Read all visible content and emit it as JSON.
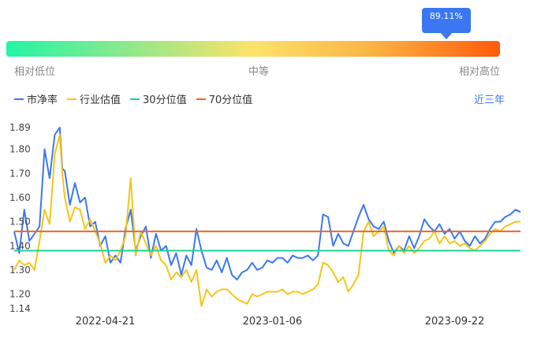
{
  "gauge": {
    "percentile_label": "89.11%",
    "percentile": 0.8911,
    "low_label": "相对低位",
    "mid_label": "中等",
    "high_label": "相对高位",
    "colors": [
      "#22f5a8",
      "#fde36a",
      "#ff5a0a"
    ]
  },
  "legend": {
    "items": [
      {
        "label": "市净率",
        "color": "#3a78f2"
      },
      {
        "label": "行业估值",
        "color": "#f5c518"
      },
      {
        "label": "30分位值",
        "color": "#1fd28f"
      },
      {
        "label": "70分位值",
        "color": "#f5621e"
      }
    ]
  },
  "period_label": "近三年",
  "chart_data": {
    "type": "line",
    "ylim": [
      1.14,
      1.89
    ],
    "ytick_labels": [
      "1.89",
      "1.80",
      "1.70",
      "1.60",
      "1.50",
      "1.40",
      "1.30",
      "1.20",
      "1.14"
    ],
    "yticks": [
      1.89,
      1.8,
      1.7,
      1.6,
      1.5,
      1.4,
      1.3,
      1.2,
      1.14
    ],
    "x_range": [
      0,
      100
    ],
    "xtick_labels": [
      "2022-04-21",
      "2023-01-06",
      "2023-09-22"
    ],
    "xticks": [
      18,
      51,
      87
    ],
    "series": [
      {
        "name": "市净率",
        "color": "#3a78f2",
        "x": [
          0,
          1,
          2,
          3,
          4,
          5,
          6,
          7,
          8,
          9,
          9.5,
          10,
          11,
          12,
          13,
          14,
          15,
          16,
          17,
          18,
          19,
          20,
          21,
          22,
          23,
          24,
          25,
          26,
          27,
          28,
          29,
          30,
          31,
          32,
          33,
          34,
          35,
          36,
          37,
          38,
          39,
          40,
          41,
          42,
          43,
          44,
          45,
          46,
          47,
          48,
          49,
          50,
          51,
          52,
          53,
          54,
          55,
          56,
          57,
          58,
          59,
          60,
          61,
          62,
          63,
          64,
          65,
          66,
          67,
          68,
          69,
          70,
          71,
          72,
          73,
          74,
          75,
          76,
          77,
          78,
          79,
          80,
          81,
          82,
          83,
          84,
          85,
          86,
          87,
          88,
          89,
          90,
          91,
          92,
          93,
          94,
          95,
          96,
          97,
          98,
          99,
          100
        ],
        "values": [
          1.46,
          1.37,
          1.55,
          1.42,
          1.45,
          1.48,
          1.8,
          1.68,
          1.86,
          1.89,
          1.72,
          1.71,
          1.57,
          1.66,
          1.58,
          1.6,
          1.48,
          1.5,
          1.4,
          1.44,
          1.33,
          1.36,
          1.33,
          1.47,
          1.55,
          1.38,
          1.44,
          1.48,
          1.35,
          1.45,
          1.38,
          1.4,
          1.32,
          1.37,
          1.28,
          1.36,
          1.32,
          1.47,
          1.38,
          1.31,
          1.3,
          1.34,
          1.29,
          1.35,
          1.28,
          1.26,
          1.29,
          1.3,
          1.33,
          1.3,
          1.31,
          1.34,
          1.33,
          1.35,
          1.35,
          1.33,
          1.36,
          1.35,
          1.35,
          1.36,
          1.34,
          1.36,
          1.53,
          1.52,
          1.4,
          1.45,
          1.41,
          1.4,
          1.46,
          1.52,
          1.57,
          1.51,
          1.48,
          1.47,
          1.5,
          1.42,
          1.37,
          1.4,
          1.38,
          1.44,
          1.39,
          1.44,
          1.51,
          1.48,
          1.46,
          1.49,
          1.45,
          1.47,
          1.43,
          1.46,
          1.42,
          1.4,
          1.44,
          1.41,
          1.43,
          1.47,
          1.5,
          1.5,
          1.52,
          1.53,
          1.55,
          1.54
        ]
      },
      {
        "name": "行业估值",
        "color": "#f5c518",
        "x": [
          0,
          1,
          2,
          3,
          4,
          5,
          6,
          7,
          8,
          9,
          9.5,
          10,
          11,
          12,
          13,
          14,
          15,
          16,
          17,
          18,
          19,
          20,
          21,
          22,
          23,
          24,
          25,
          26,
          27,
          28,
          29,
          30,
          31,
          32,
          33,
          34,
          35,
          36,
          37,
          38,
          39,
          40,
          41,
          42,
          43,
          44,
          45,
          46,
          47,
          48,
          49,
          50,
          51,
          52,
          53,
          54,
          55,
          56,
          57,
          58,
          59,
          60,
          61,
          62,
          63,
          64,
          65,
          66,
          67,
          68,
          69,
          70,
          71,
          72,
          73,
          74,
          75,
          76,
          77,
          78,
          79,
          80,
          81,
          82,
          83,
          84,
          85,
          86,
          87,
          88,
          89,
          90,
          91,
          92,
          93,
          94,
          95,
          96,
          97,
          98,
          99,
          100
        ],
        "values": [
          1.3,
          1.34,
          1.32,
          1.33,
          1.3,
          1.42,
          1.55,
          1.49,
          1.78,
          1.86,
          1.7,
          1.6,
          1.5,
          1.56,
          1.55,
          1.47,
          1.51,
          1.46,
          1.41,
          1.33,
          1.36,
          1.34,
          1.38,
          1.44,
          1.68,
          1.36,
          1.46,
          1.41,
          1.36,
          1.4,
          1.34,
          1.32,
          1.26,
          1.29,
          1.27,
          1.3,
          1.25,
          1.3,
          1.15,
          1.22,
          1.19,
          1.21,
          1.22,
          1.22,
          1.2,
          1.18,
          1.17,
          1.16,
          1.2,
          1.19,
          1.2,
          1.21,
          1.21,
          1.21,
          1.22,
          1.2,
          1.21,
          1.21,
          1.2,
          1.21,
          1.22,
          1.24,
          1.33,
          1.32,
          1.29,
          1.25,
          1.27,
          1.21,
          1.24,
          1.28,
          1.46,
          1.5,
          1.44,
          1.46,
          1.48,
          1.38,
          1.36,
          1.4,
          1.37,
          1.4,
          1.37,
          1.39,
          1.42,
          1.43,
          1.46,
          1.41,
          1.44,
          1.41,
          1.42,
          1.4,
          1.41,
          1.39,
          1.38,
          1.4,
          1.42,
          1.45,
          1.47,
          1.46,
          1.48,
          1.49,
          1.5,
          1.5
        ]
      },
      {
        "name": "30分位值",
        "color": "#1fd28f",
        "x": [
          0,
          100
        ],
        "values": [
          1.38,
          1.38
        ]
      },
      {
        "name": "70分位值",
        "color": "#f5621e",
        "x": [
          0,
          100
        ],
        "values": [
          1.46,
          1.46
        ]
      }
    ]
  }
}
